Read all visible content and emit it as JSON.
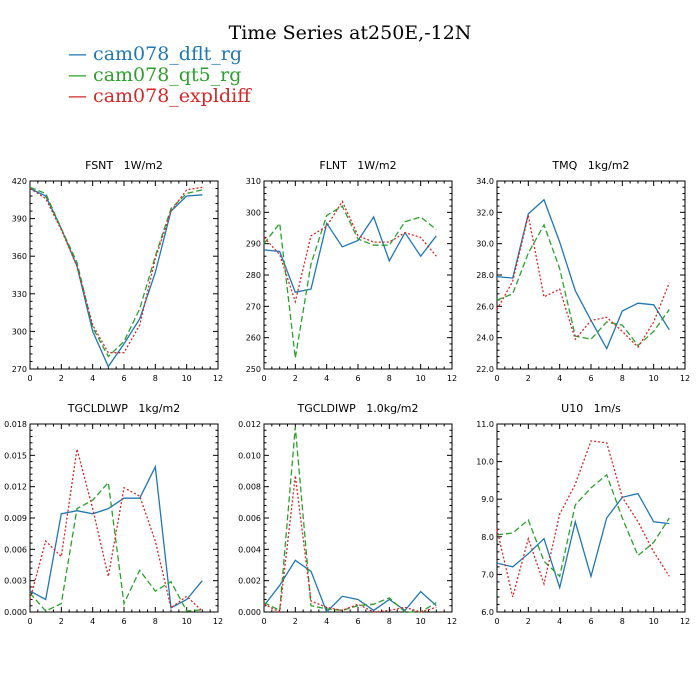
{
  "title": "Time Series at250E,-12N",
  "legend": [
    {
      "label": "cam078_dflt_rg",
      "color": "#1f77b4"
    },
    {
      "label": "cam078_qt5_rg",
      "color": "#2ca02c"
    },
    {
      "label": "cam078_expldiff",
      "color": "#d62728"
    }
  ],
  "chart_data": [
    {
      "type": "line",
      "title": "FSNT   1W/m2",
      "x": [
        0,
        1,
        2,
        3,
        4,
        5,
        6,
        7,
        8,
        9,
        10,
        11
      ],
      "xlim": [
        0,
        12
      ],
      "xticks": [
        0,
        2,
        4,
        6,
        8,
        10,
        12
      ],
      "ylim": [
        270,
        420
      ],
      "yticks": [
        270,
        300,
        330,
        360,
        390,
        420
      ],
      "ytick_labels": [
        "270",
        "300",
        "330",
        "360",
        "390",
        "420"
      ],
      "series": [
        {
          "name": "cam078_dflt_rg",
          "values": [
            414,
            408,
            382,
            352,
            300,
            272,
            290,
            310,
            347,
            396,
            408,
            409
          ]
        },
        {
          "name": "cam078_qt5_rg",
          "values": [
            415,
            410,
            382,
            355,
            303,
            280,
            292,
            318,
            360,
            398,
            410,
            413
          ]
        },
        {
          "name": "cam078_expldiff",
          "values": [
            414,
            406,
            381,
            352,
            305,
            283,
            283,
            305,
            358,
            396,
            413,
            415
          ]
        }
      ]
    },
    {
      "type": "line",
      "title": "FLNT   1W/m2",
      "x": [
        0,
        1,
        2,
        3,
        4,
        5,
        6,
        7,
        8,
        9,
        10,
        11
      ],
      "xlim": [
        0,
        12
      ],
      "xticks": [
        0,
        2,
        4,
        6,
        8,
        10,
        12
      ],
      "ylim": [
        250,
        310
      ],
      "yticks": [
        250,
        260,
        270,
        280,
        290,
        300,
        310
      ],
      "ytick_labels": [
        "250",
        "260",
        "270",
        "280",
        "290",
        "300",
        "310"
      ],
      "series": [
        {
          "name": "cam078_dflt_rg",
          "values": [
            288,
            287.5,
            274.5,
            275.5,
            296.5,
            289,
            291,
            298.5,
            284.5,
            293.5,
            286,
            292.5
          ]
        },
        {
          "name": "cam078_qt5_rg",
          "values": [
            290,
            296.5,
            253.5,
            283.5,
            299,
            302,
            291.5,
            289.5,
            289.5,
            297,
            298.5,
            294.5
          ]
        },
        {
          "name": "cam078_expldiff",
          "values": [
            292,
            286.5,
            271.5,
            292.5,
            295.5,
            303.5,
            292.5,
            290.5,
            290.5,
            293.5,
            292,
            286
          ]
        }
      ]
    },
    {
      "type": "line",
      "title": "TMQ   1kg/m2",
      "x": [
        0,
        1,
        2,
        3,
        4,
        5,
        6,
        7,
        8,
        9,
        10,
        11
      ],
      "xlim": [
        0,
        12
      ],
      "xticks": [
        0,
        2,
        4,
        6,
        8,
        10,
        12
      ],
      "ylim": [
        22,
        34
      ],
      "yticks": [
        22,
        24,
        26,
        28,
        30,
        32,
        34
      ],
      "ytick_labels": [
        "22.0",
        "24.0",
        "26.0",
        "28.0",
        "30.0",
        "32.0",
        "34.0"
      ],
      "series": [
        {
          "name": "cam078_dflt_rg",
          "values": [
            27.9,
            27.8,
            31.9,
            32.8,
            30.1,
            27,
            25.1,
            23.3,
            25.7,
            26.2,
            26.1,
            24.5
          ]
        },
        {
          "name": "cam078_qt5_rg",
          "values": [
            26.4,
            26.8,
            29.4,
            31.2,
            28.4,
            24.1,
            23.9,
            25,
            24.8,
            23.5,
            24.4,
            25.8
          ]
        },
        {
          "name": "cam078_expldiff",
          "values": [
            25.8,
            27.6,
            31.8,
            26.6,
            27.1,
            23.9,
            25.1,
            25.3,
            24.4,
            23.4,
            25,
            27.5
          ]
        }
      ]
    },
    {
      "type": "line",
      "title": "TGCLDLWP   1kg/m2",
      "x": [
        0,
        1,
        2,
        3,
        4,
        5,
        6,
        7,
        8,
        9,
        10,
        11
      ],
      "xlim": [
        0,
        12
      ],
      "xticks": [
        0,
        2,
        4,
        6,
        8,
        10,
        12
      ],
      "ylim": [
        0,
        0.018
      ],
      "yticks": [
        0,
        0.003,
        0.006,
        0.009,
        0.012,
        0.015,
        0.018
      ],
      "ytick_labels": [
        "0.000",
        "0.003",
        "0.006",
        "0.009",
        "0.012",
        "0.015",
        "0.018"
      ],
      "series": [
        {
          "name": "cam078_dflt_rg",
          "values": [
            0.002,
            0.0012,
            0.0094,
            0.0097,
            0.0094,
            0.0099,
            0.0109,
            0.0109,
            0.0139,
            0.0004,
            0.0012,
            0.003
          ]
        },
        {
          "name": "cam078_qt5_rg",
          "values": [
            0.0018,
            0.0001,
            0.0008,
            0.0099,
            0.0107,
            0.0124,
            0.0008,
            0.004,
            0.002,
            0.0029,
            0.0001,
            0.0002
          ]
        },
        {
          "name": "cam078_expldiff",
          "values": [
            0.0012,
            0.0068,
            0.0053,
            0.0156,
            0.0099,
            0.0034,
            0.0119,
            0.0111,
            0.0068,
            0.0004,
            0.0015,
            0.0001
          ]
        }
      ]
    },
    {
      "type": "line",
      "title": "TGCLDIWP   1.0kg/m2",
      "x": [
        0,
        1,
        2,
        3,
        4,
        5,
        6,
        7,
        8,
        9,
        10,
        11
      ],
      "xlim": [
        0,
        12
      ],
      "xticks": [
        0,
        2,
        4,
        6,
        8,
        10,
        12
      ],
      "ylim": [
        0,
        0.012
      ],
      "yticks": [
        0,
        0.002,
        0.004,
        0.006,
        0.008,
        0.01,
        0.012
      ],
      "ytick_labels": [
        "0.000",
        "0.002",
        "0.004",
        "0.006",
        "0.008",
        "0.010",
        "0.012"
      ],
      "series": [
        {
          "name": "cam078_dflt_rg",
          "values": [
            0.0004,
            0.0017,
            0.0033,
            0.0026,
            0,
            0.001,
            0.0008,
            0.0001,
            0.0008,
            0.0001,
            0.0013,
            0.0004
          ]
        },
        {
          "name": "cam078_qt5_rg",
          "values": [
            0.0006,
            0.0001,
            0.0118,
            0.0004,
            0.0002,
            0.0001,
            0.0004,
            0.0005,
            0.0009,
            0,
            0,
            0.0006
          ]
        },
        {
          "name": "cam078_expldiff",
          "values": [
            0.0005,
            0,
            0.0087,
            0.0007,
            0.0003,
            0.0001,
            0.0005,
            0,
            0.0001,
            0.0003,
            0,
            0.0003
          ]
        }
      ]
    },
    {
      "type": "line",
      "title": "U10   1m/s",
      "x": [
        0,
        1,
        2,
        3,
        4,
        5,
        6,
        7,
        8,
        9,
        10,
        11
      ],
      "xlim": [
        0,
        12
      ],
      "xticks": [
        0,
        2,
        4,
        6,
        8,
        10,
        12
      ],
      "ylim": [
        6,
        11
      ],
      "yticks": [
        6,
        7,
        8,
        9,
        10,
        11
      ],
      "ytick_labels": [
        "6.0",
        "7.0",
        "8.0",
        "9.0",
        "10.0",
        "11.0"
      ],
      "series": [
        {
          "name": "cam078_dflt_rg",
          "values": [
            7.3,
            7.2,
            7.55,
            7.95,
            6.65,
            8.4,
            6.95,
            8.5,
            9.05,
            9.15,
            8.4,
            8.35
          ]
        },
        {
          "name": "cam078_qt5_rg",
          "values": [
            8.05,
            8.1,
            8.45,
            7.35,
            6.95,
            8.85,
            9.3,
            9.65,
            8.5,
            7.5,
            7.85,
            8.5
          ]
        },
        {
          "name": "cam078_expldiff",
          "values": [
            8.2,
            6.4,
            7.95,
            6.75,
            8.6,
            9.4,
            10.55,
            10.5,
            9.05,
            8.4,
            7.6,
            6.95
          ]
        }
      ]
    }
  ]
}
